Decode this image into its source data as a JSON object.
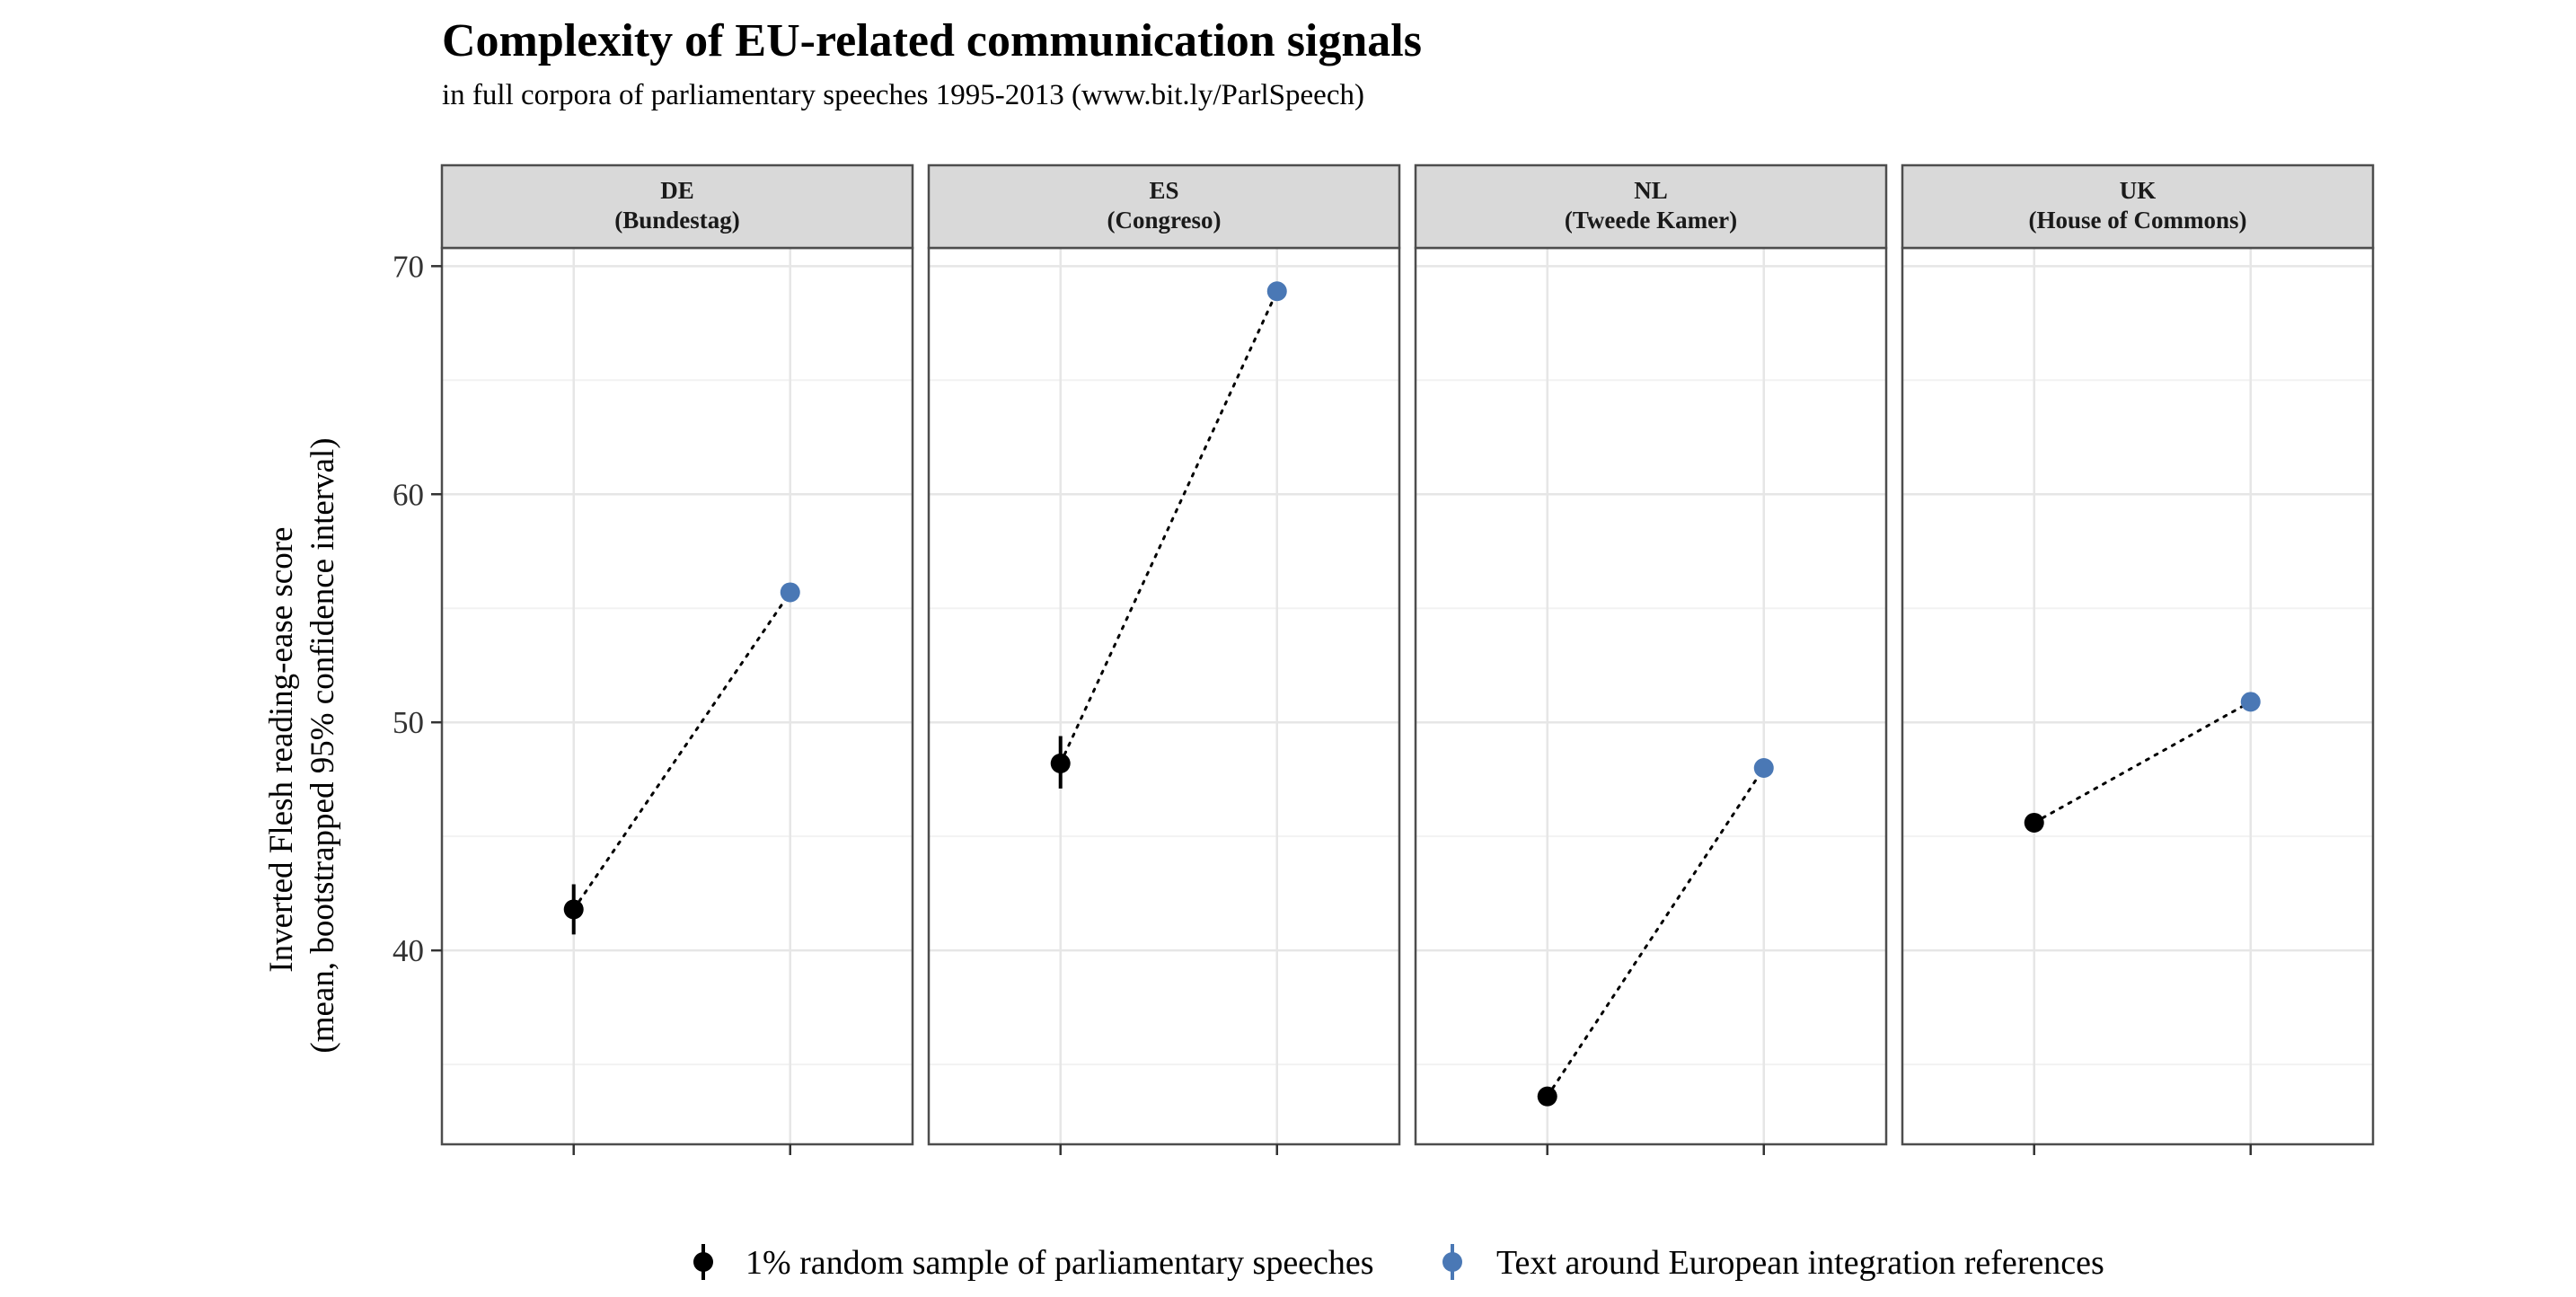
{
  "chart_data": {
    "type": "scatter",
    "title": "Complexity of EU-related communication signals",
    "subtitle": "in full corpora of parliamentary speeches 1995-2013 (www.bit.ly/ParlSpeech)",
    "ylabel_lines": [
      "Inverted Flesh reading-ease score",
      "(mean, bootstrapped 95% confidence interval)"
    ],
    "xlabel": "",
    "ylim": [
      31.5,
      70.8
    ],
    "yticks": [
      40,
      50,
      60,
      70
    ],
    "grid": true,
    "legend_position": "bottom",
    "facets": [
      {
        "id": "de",
        "label_top": "DE",
        "label_bottom": "(Bundestag)"
      },
      {
        "id": "es",
        "label_top": "ES",
        "label_bottom": "(Congreso)"
      },
      {
        "id": "nl",
        "label_top": "NL",
        "label_bottom": "(Tweede Kamer)"
      },
      {
        "id": "uk",
        "label_top": "UK",
        "label_bottom": "(House of Commons)"
      }
    ],
    "series": [
      {
        "name": "1% random sample of parliamentary speeches",
        "color": "#000000",
        "values": [
          41.8,
          48.2,
          33.6,
          45.6
        ],
        "ci_low": [
          40.7,
          47.1,
          33.3,
          45.3
        ],
        "ci_high": [
          42.9,
          49.4,
          33.9,
          45.9
        ]
      },
      {
        "name": "Text around European integration references",
        "color": "#4a78b5",
        "values": [
          55.7,
          68.9,
          48.0,
          50.9
        ],
        "ci_low": [
          55.5,
          68.7,
          47.8,
          50.7
        ],
        "ci_high": [
          55.9,
          69.1,
          48.2,
          51.1
        ]
      }
    ]
  }
}
